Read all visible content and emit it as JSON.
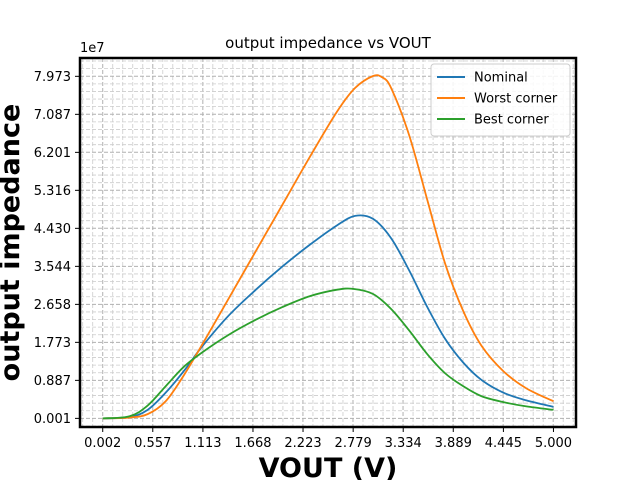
{
  "chart_data": {
    "type": "line",
    "title": "output impedance vs VOUT",
    "xlabel": "VOUT (V)",
    "ylabel": "output impedance",
    "y_offset_text": "1e7",
    "xlim": [
      -0.25,
      5.25
    ],
    "ylim": [
      -0.2,
      8.4
    ],
    "x_ticks": [
      0.002,
      0.557,
      1.113,
      1.668,
      2.223,
      2.779,
      3.334,
      3.889,
      4.445,
      5.0
    ],
    "x_tick_labels": [
      "0.002",
      "0.557",
      "1.113",
      "1.668",
      "2.223",
      "2.779",
      "3.334",
      "3.889",
      "4.445",
      "5.000"
    ],
    "y_ticks": [
      0.001,
      0.887,
      1.773,
      2.658,
      3.544,
      4.43,
      5.316,
      6.201,
      7.087,
      7.973
    ],
    "y_tick_labels": [
      "0.001",
      "0.887",
      "1.773",
      "2.658",
      "3.544",
      "4.430",
      "5.316",
      "6.201",
      "7.087",
      "7.973"
    ],
    "grid": true,
    "legend_position": "top-right",
    "series": [
      {
        "name": "Nominal",
        "color": "#1f77b4",
        "x": [
          0.002,
          0.3,
          0.5,
          0.7,
          0.9,
          1.113,
          1.4,
          1.7,
          2.0,
          2.3,
          2.6,
          2.8,
          3.0,
          3.2,
          3.4,
          3.6,
          3.8,
          4.0,
          4.2,
          4.445,
          4.7,
          5.0
        ],
        "values": [
          0.001,
          0.03,
          0.2,
          0.6,
          1.1,
          1.7,
          2.4,
          3.0,
          3.55,
          4.05,
          4.5,
          4.72,
          4.65,
          4.2,
          3.45,
          2.6,
          1.85,
          1.3,
          0.9,
          0.6,
          0.42,
          0.27
        ]
      },
      {
        "name": "Worst corner",
        "color": "#ff7f0e",
        "x": [
          0.002,
          0.3,
          0.5,
          0.7,
          0.9,
          1.113,
          1.4,
          1.7,
          2.0,
          2.3,
          2.6,
          2.8,
          3.0,
          3.1,
          3.2,
          3.4,
          3.6,
          3.8,
          4.0,
          4.2,
          4.445,
          4.7,
          5.0
        ],
        "values": [
          0.001,
          0.02,
          0.1,
          0.4,
          1.0,
          1.75,
          2.8,
          3.9,
          5.0,
          6.1,
          7.15,
          7.7,
          7.98,
          7.95,
          7.7,
          6.6,
          5.1,
          3.6,
          2.5,
          1.7,
          1.1,
          0.7,
          0.4
        ]
      },
      {
        "name": "Best corner",
        "color": "#2ca02c",
        "x": [
          0.002,
          0.3,
          0.5,
          0.7,
          0.9,
          1.113,
          1.4,
          1.7,
          2.0,
          2.3,
          2.6,
          2.779,
          3.0,
          3.2,
          3.4,
          3.6,
          3.8,
          4.0,
          4.2,
          4.445,
          4.7,
          5.0
        ],
        "values": [
          0.001,
          0.05,
          0.3,
          0.75,
          1.2,
          1.55,
          1.95,
          2.3,
          2.6,
          2.85,
          3.0,
          3.02,
          2.9,
          2.55,
          2.05,
          1.5,
          1.05,
          0.75,
          0.52,
          0.38,
          0.28,
          0.2
        ]
      }
    ]
  }
}
